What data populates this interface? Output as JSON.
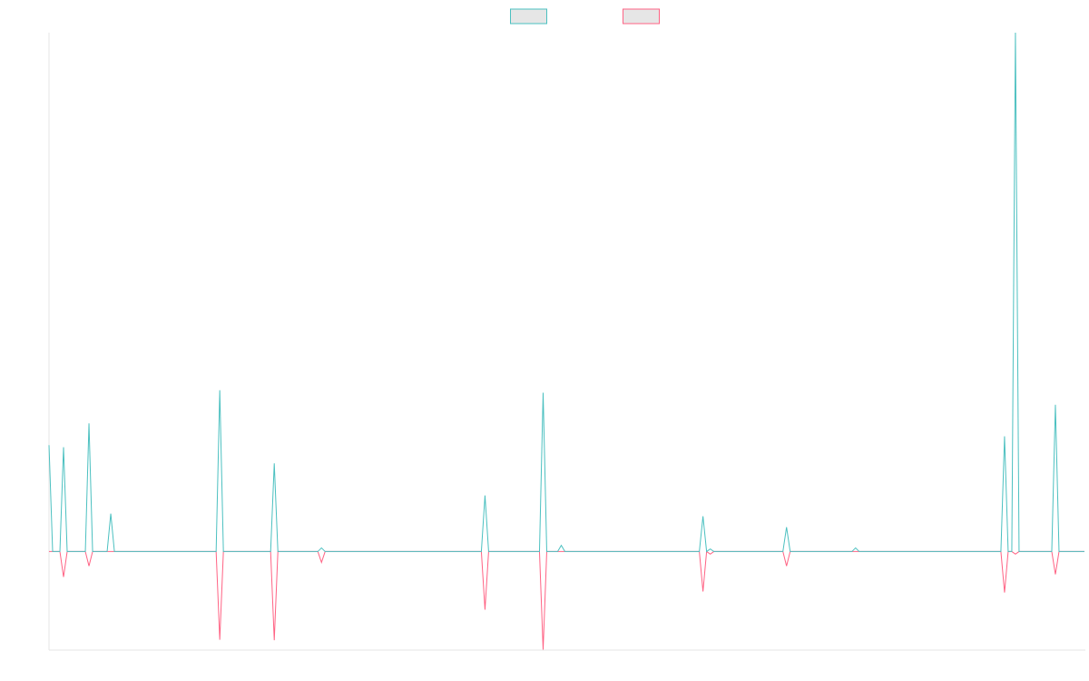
{
  "chart_data": {
    "type": "line",
    "x": [
      0,
      1,
      3,
      4,
      5,
      10,
      11,
      12,
      16,
      17,
      18,
      46,
      47,
      48,
      61,
      62,
      63,
      74,
      75,
      76,
      119,
      120,
      121,
      135,
      136,
      137,
      140,
      141,
      142,
      179,
      180,
      181,
      182,
      183,
      202,
      203,
      204,
      221,
      222,
      223,
      262,
      263,
      264,
      265,
      266,
      267,
      276,
      277,
      278,
      285
    ],
    "xlim": [
      0,
      285
    ],
    "ylim": [
      -19,
      100
    ],
    "grid": false,
    "legend": "top",
    "series": [
      {
        "color": "#4bc0c0",
        "values": [
          20.5,
          0,
          0,
          20.1,
          0,
          0,
          24.7,
          0,
          0,
          7.3,
          0,
          0,
          31.1,
          0,
          0,
          17,
          0,
          0,
          0.7,
          0,
          0,
          10.8,
          0,
          0,
          30.6,
          0,
          0,
          1.2,
          0,
          0,
          6.8,
          0,
          0.5,
          0,
          0,
          4.7,
          0,
          0,
          0.7,
          0,
          0,
          22.2,
          0,
          0,
          100,
          0,
          0,
          28.3,
          0,
          0
        ]
      },
      {
        "color": "#ff6384",
        "values": [
          0,
          0,
          0,
          -4.9,
          0,
          0,
          -2.8,
          0,
          0,
          0,
          0,
          0,
          -17,
          0,
          0,
          -17.1,
          0,
          0,
          -2.1,
          0,
          0,
          -11.2,
          0,
          0,
          -18.9,
          0,
          0,
          0,
          0,
          0,
          -7.7,
          0,
          -0.5,
          0,
          0,
          -2.8,
          0,
          0,
          0,
          0,
          0,
          -7.9,
          0,
          0,
          -0.5,
          0,
          0,
          -4.4,
          0,
          0
        ]
      }
    ]
  }
}
